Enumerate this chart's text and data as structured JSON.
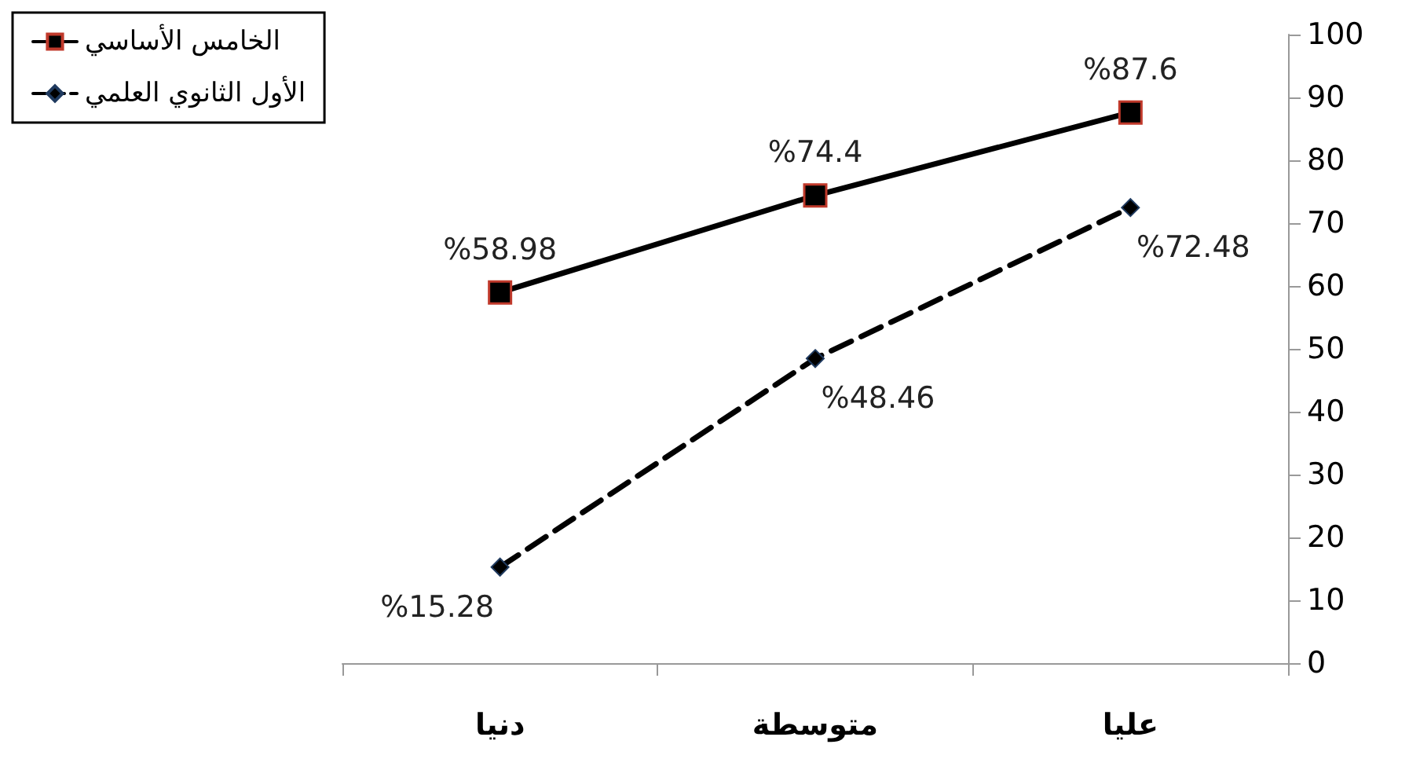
{
  "chart_data": {
    "type": "line",
    "categories": [
      "دنيا",
      "متوسطة",
      "عليا"
    ],
    "series": [
      {
        "name": "الخامس الأساسي",
        "color": "#000000",
        "marker": "square",
        "line_style": "solid",
        "values": [
          58.98,
          74.4,
          87.6
        ],
        "value_labels": [
          "%58.98",
          "%74.4",
          "%87.6"
        ]
      },
      {
        "name": "الأول الثانوي العلمي",
        "color": "#000000",
        "marker": "diamond",
        "line_style": "dashed",
        "values": [
          15.28,
          48.46,
          72.48
        ],
        "value_labels": [
          "%15.28",
          "%48.46",
          "%72.48"
        ]
      }
    ],
    "ylim": [
      0,
      100
    ],
    "yticks": [
      0,
      10,
      20,
      30,
      40,
      50,
      60,
      70,
      80,
      90,
      100
    ],
    "grid": false,
    "legend": "top left"
  }
}
